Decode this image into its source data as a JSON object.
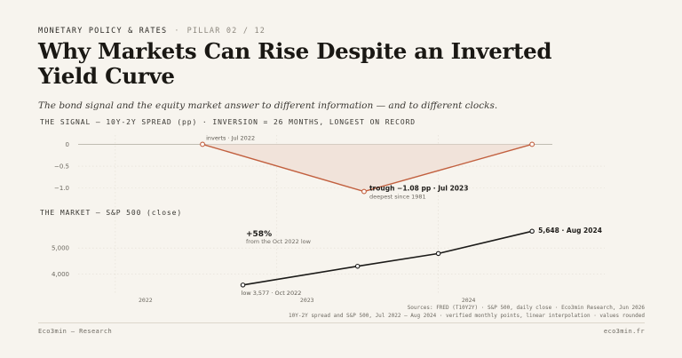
{
  "header": {
    "kicker": "MONETARY POLICY & RATES",
    "separator": "·",
    "pillar": "PILLAR 02 / 12",
    "title": "Why Markets Can Rise Despite an Inverted Yield Curve",
    "subtitle": "The bond signal and the equity market answer to different information — and to different clocks."
  },
  "colors": {
    "spread_line": "#c2603f",
    "spread_fill": "#f1e3da",
    "index_line": "#1c1b19",
    "axis_text": "#6b675f",
    "grid": "#e3ded4"
  },
  "chart_data": [
    {
      "type": "area",
      "title": "THE SIGNAL — 10Y-2Y SPREAD (pp) · INVERSION = 26 MONTHS, LONGEST ON RECORD",
      "y_ticks": [
        "0",
        "−0.5",
        "−1.0"
      ],
      "y_tick_values": [
        0,
        -0.5,
        -1.0
      ],
      "ylim": [
        -1.15,
        0.05
      ],
      "x": [
        "Jul 2022",
        "Jul 2023",
        "Aug 2024"
      ],
      "x_values": [
        2022.54,
        2023.54,
        2024.58
      ],
      "values": [
        0,
        -1.08,
        0
      ],
      "grid": true,
      "annotations": {
        "start": "inverts · Jul 2022",
        "trough": "trough −1.08 pp · Jul 2023",
        "trough_note": "deepest since 1981"
      }
    },
    {
      "type": "line",
      "title": "THE MARKET — S&P 500 (close)",
      "y_ticks": [
        "5,000",
        "4,000"
      ],
      "y_tick_values": [
        5000,
        4000
      ],
      "ylim": [
        3400,
        6000
      ],
      "x_values": [
        2022.79,
        2023.5,
        2024.0,
        2024.58
      ],
      "values": [
        3577,
        4300,
        4790,
        5648
      ],
      "grid": true,
      "annotations": {
        "end": "5,648 · Aug 2024",
        "low": "low 3,577 · Oct 2022",
        "gain": "+58%",
        "gain_note": "from the Oct 2022 low"
      }
    }
  ],
  "x_axis": {
    "ticks": [
      "2022",
      "2023",
      "2024"
    ],
    "tick_values": [
      2022,
      2023,
      2024
    ],
    "xlim": [
      2021.77,
      2025.03
    ]
  },
  "sources": {
    "line1": "Sources: FRED (T10Y2Y) · S&P 500, daily close · Eco3min Research, Jun 2026",
    "line2": "10Y-2Y spread and S&P 500, Jul 2022 – Aug 2024 · verified monthly points, linear interpolation · values rounded"
  },
  "footer": {
    "left": "Eco3min — Research",
    "right": "eco3min.fr"
  }
}
